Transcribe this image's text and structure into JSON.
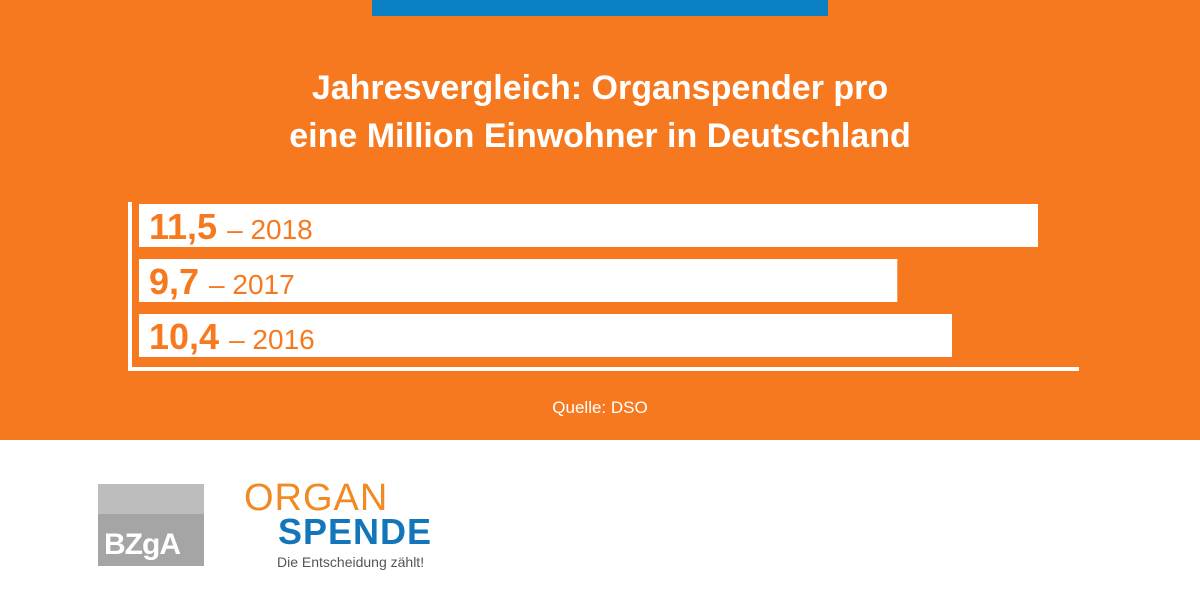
{
  "title": {
    "line1": "Jahresvergleich: Organspender pro",
    "line2": "eine Million Einwohner in Deutschland"
  },
  "chart_data": {
    "type": "bar",
    "orientation": "horizontal",
    "categories": [
      "2018",
      "2017",
      "2016"
    ],
    "values": [
      11.5,
      9.7,
      10.4
    ],
    "value_labels": [
      "11,5",
      "9,7",
      "10,4"
    ],
    "category_labels": [
      "– 2018",
      "– 2017",
      "– 2016"
    ],
    "title": "Jahresvergleich: Organspender pro eine Million Einwohner in Deutschland",
    "xlabel": "",
    "ylabel": "",
    "grid": false,
    "legend": "none"
  },
  "source": "Quelle: DSO",
  "logos": {
    "bzga": "BZgA",
    "organ": "ORGAN",
    "spende": "SPENDE",
    "tagline": "Die Entscheidung zählt!"
  },
  "colors": {
    "background": "#f7791f",
    "bar": "#ffffff",
    "value_text": "#f7791f",
    "accent_blue": "#0a7fc2"
  }
}
